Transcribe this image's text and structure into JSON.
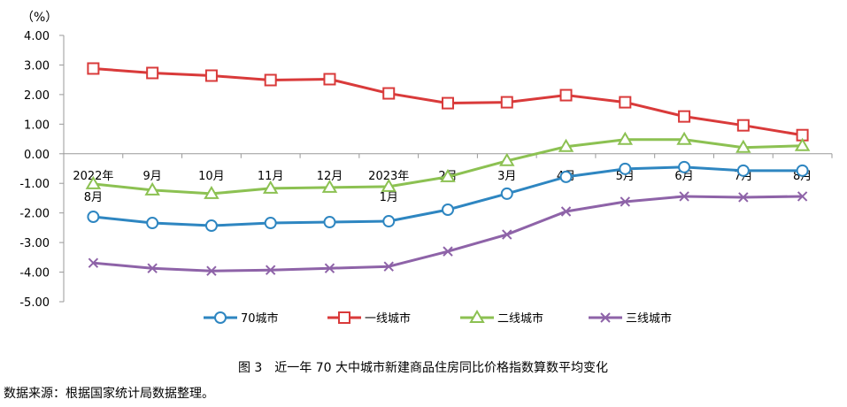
{
  "chart_data": {
    "type": "line",
    "unit_label": "（%）",
    "categories": [
      [
        "2022年",
        "8月"
      ],
      [
        "9月"
      ],
      [
        "10月"
      ],
      [
        "11月"
      ],
      [
        "12月"
      ],
      [
        "2023年",
        "1月"
      ],
      [
        "2月"
      ],
      [
        "3月"
      ],
      [
        "4月"
      ],
      [
        "5月"
      ],
      [
        "6月"
      ],
      [
        "7月"
      ],
      [
        "8月"
      ]
    ],
    "ylim": [
      -5,
      4
    ],
    "yticks": [
      "4.00",
      "3.00",
      "2.00",
      "1.00",
      "0.00",
      "-1.00",
      "-2.00",
      "-3.00",
      "-4.00",
      "-5.00"
    ],
    "ytick_values": [
      4,
      3,
      2,
      1,
      0,
      -1,
      -2,
      -3,
      -4,
      -5
    ],
    "legend_position": "bottom",
    "series": [
      {
        "name": "70城市",
        "color": "#2e86c1",
        "marker": "circle",
        "values": [
          -2.13,
          -2.34,
          -2.43,
          -2.34,
          -2.31,
          -2.28,
          -1.89,
          -1.35,
          -0.78,
          -0.51,
          -0.45,
          -0.57,
          -0.57
        ]
      },
      {
        "name": "一线城市",
        "color": "#d93a3a",
        "marker": "square",
        "values": [
          2.88,
          2.73,
          2.64,
          2.49,
          2.52,
          2.04,
          1.71,
          1.74,
          1.98,
          1.74,
          1.26,
          0.96,
          0.63
        ]
      },
      {
        "name": "二线城市",
        "color": "#8cc152",
        "marker": "triangle",
        "values": [
          -1.02,
          -1.23,
          -1.35,
          -1.17,
          -1.14,
          -1.11,
          -0.78,
          -0.24,
          0.24,
          0.48,
          0.48,
          0.21,
          0.27
        ]
      },
      {
        "name": "三线城市",
        "color": "#8e63a8",
        "marker": "x",
        "values": [
          -3.69,
          -3.87,
          -3.96,
          -3.93,
          -3.87,
          -3.81,
          -3.3,
          -2.73,
          -1.95,
          -1.62,
          -1.44,
          -1.47,
          -1.44
        ]
      }
    ],
    "title": "图 3　近一年 70 大中城市新建商品住房同比价格指数算数平均变化",
    "source": "数据来源：根据国家统计局数据整理。"
  }
}
